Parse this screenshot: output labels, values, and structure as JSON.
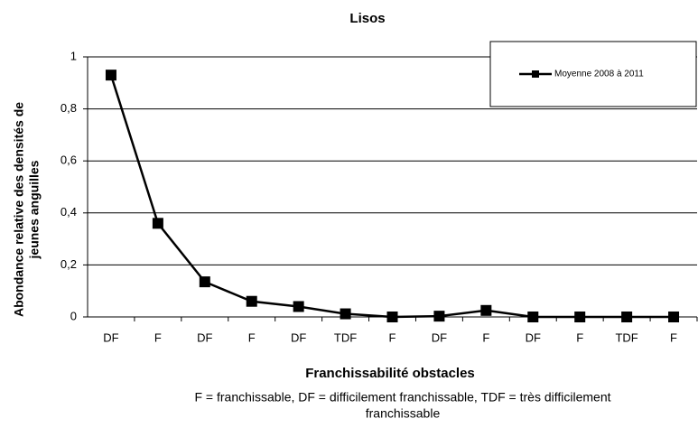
{
  "chart_data": {
    "type": "line",
    "title": "Lisos",
    "ylabel": [
      "Abondance relative des densités de",
      "jeunes anguilles"
    ],
    "xlabel": "Franchissabilité obstacles",
    "note": [
      "F = franchissable, DF = difficilement franchissable, TDF = très difficilement",
      "franchissable"
    ],
    "categories": [
      "DF",
      "F",
      "DF",
      "F",
      "DF",
      "TDF",
      "F",
      "DF",
      "F",
      "DF",
      "F",
      "TDF",
      "F"
    ],
    "series": [
      {
        "name": "Moyenne 2008 à 2011",
        "color": "#000000",
        "values": [
          0.93,
          0.36,
          0.135,
          0.06,
          0.04,
          0.012,
          0,
          0.003,
          0.025,
          0,
          0,
          0,
          0
        ]
      }
    ],
    "ylim": [
      0,
      1
    ],
    "yticks": [
      0,
      {
        "value": 0.2,
        "label": "0,2"
      },
      {
        "value": 0.4,
        "label": "0,4"
      },
      {
        "value": 0.6,
        "label": "0,6"
      },
      {
        "value": 0.8,
        "label": "0,8"
      },
      1
    ],
    "grid": true,
    "legend": "top-right"
  }
}
